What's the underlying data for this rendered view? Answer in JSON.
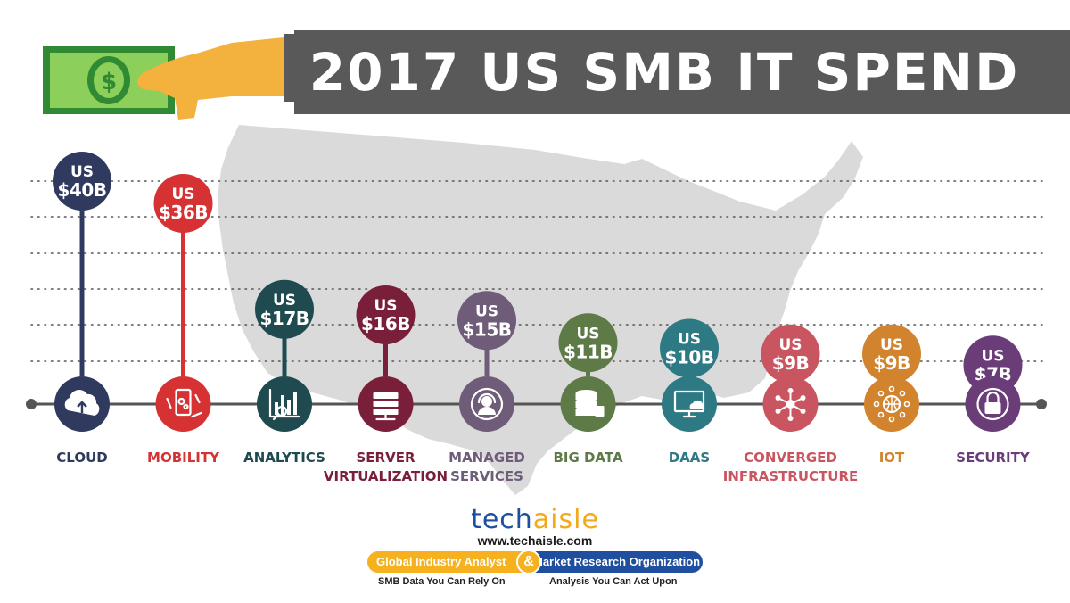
{
  "title": "2017 US SMB IT SPEND",
  "chart_data": {
    "type": "bar",
    "title": "2017 US SMB IT SPEND",
    "unit": "US $B",
    "categories": [
      "CLOUD",
      "MOBILITY",
      "ANALYTICS",
      "SERVER VIRTUALIZATION",
      "MANAGED SERVICES",
      "BIG DATA",
      "DAAS",
      "CONVERGED INFRASTRUCTURE",
      "IOT",
      "SECURITY"
    ],
    "category_lines": [
      [
        "CLOUD"
      ],
      [
        "MOBILITY"
      ],
      [
        "ANALYTICS"
      ],
      [
        "SERVER",
        "VIRTUALIZATION"
      ],
      [
        "MANAGED",
        "SERVICES"
      ],
      [
        "BIG DATA"
      ],
      [
        "DAAS"
      ],
      [
        "CONVERGED",
        "INFRASTRUCTURE"
      ],
      [
        "IOT"
      ],
      [
        "SECURITY"
      ]
    ],
    "values": [
      40,
      36,
      17,
      16,
      15,
      11,
      10,
      9,
      9,
      7
    ],
    "value_labels": [
      "$40B",
      "$36B",
      "$17B",
      "$16B",
      "$15B",
      "$11B",
      "$10B",
      "$9B",
      "$9B",
      "$7B"
    ],
    "value_prefix": "US",
    "icons": [
      "cloud-icon",
      "mobility-icon",
      "analytics-icon",
      "server-icon",
      "headset-icon",
      "database-icon",
      "monitor-cloud-icon",
      "network-hub-icon",
      "globe-network-icon",
      "lock-icon"
    ],
    "colors": [
      "#2f3a5e",
      "#d63133",
      "#1f4a4f",
      "#7a1f3a",
      "#6e5c78",
      "#5d7a47",
      "#2d7a85",
      "#c85560",
      "#d1842d",
      "#6a3c78"
    ],
    "grid": true,
    "ylim": [
      0,
      40
    ]
  },
  "branding": {
    "logo_part1": "tech",
    "logo_part2": "aisle",
    "url": "www.techaisle.com",
    "pill_left": "Global Industry Analyst",
    "pill_amp": "&",
    "pill_right": "Market Research Organization",
    "tagline_left": "SMB Data You Can Rely On",
    "tagline_right": "Analysis You Can Act Upon"
  },
  "colors": {
    "title_bar": "#595959",
    "map": "#dadada",
    "axis": "#555555",
    "money_green": "#3da33f"
  }
}
